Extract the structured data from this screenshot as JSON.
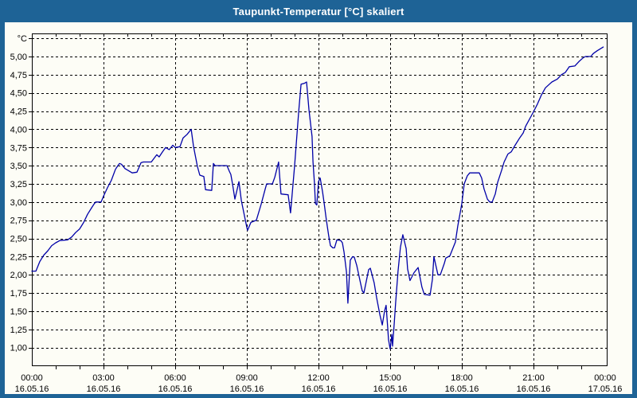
{
  "window": {
    "title": "Taupunkt-Temperatur [°C] skaliert"
  },
  "colors": {
    "titlebar_bg": "#1e6396",
    "titlebar_text": "#ffffff",
    "window_border": "#1e6396",
    "panel_bg": "#fdfdf6",
    "line": "#0000a8",
    "grid": "#000000",
    "frame": "#000000",
    "axis_text": "#000000"
  },
  "chart_data": {
    "type": "line",
    "title": "Taupunkt-Temperatur [°C] skaliert",
    "grid": "dashed",
    "legend_position": "none",
    "y_axis": {
      "unit": "°C",
      "min": 0.75,
      "max": 5.32,
      "tick_step": 0.25,
      "top_gridline_value": 5.25,
      "ticks": [
        {
          "value": 5.0,
          "label": "5,00"
        },
        {
          "value": 4.75,
          "label": "4,75"
        },
        {
          "value": 4.5,
          "label": "4,50"
        },
        {
          "value": 4.25,
          "label": "4,25"
        },
        {
          "value": 4.0,
          "label": "4,00"
        },
        {
          "value": 3.75,
          "label": "3,75"
        },
        {
          "value": 3.5,
          "label": "3,50"
        },
        {
          "value": 3.25,
          "label": "3,25"
        },
        {
          "value": 3.0,
          "label": "3,00"
        },
        {
          "value": 2.75,
          "label": "2,75"
        },
        {
          "value": 2.5,
          "label": "2,50"
        },
        {
          "value": 2.25,
          "label": "2,25"
        },
        {
          "value": 2.0,
          "label": "2,00"
        },
        {
          "value": 1.75,
          "label": "1,75"
        },
        {
          "value": 1.5,
          "label": "1,50"
        },
        {
          "value": 1.25,
          "label": "1,25"
        },
        {
          "value": 1.0,
          "label": "1,00"
        }
      ]
    },
    "x_axis": {
      "minor_tick_hours": 1,
      "major_tick_hours": 3,
      "ticks": [
        {
          "hour": 0,
          "time": "00:00",
          "date": "16.05.16"
        },
        {
          "hour": 3,
          "time": "03:00",
          "date": "16.05.16"
        },
        {
          "hour": 6,
          "time": "06:00",
          "date": "16.05.16"
        },
        {
          "hour": 9,
          "time": "09:00",
          "date": "16.05.16"
        },
        {
          "hour": 12,
          "time": "12:00",
          "date": "16.05.16"
        },
        {
          "hour": 15,
          "time": "15:00",
          "date": "16.05.16"
        },
        {
          "hour": 18,
          "time": "18:00",
          "date": "16.05.16"
        },
        {
          "hour": 21,
          "time": "21:00",
          "date": "16.05.16"
        },
        {
          "hour": 24,
          "time": "00:00",
          "date": "17.05.16"
        }
      ]
    },
    "series": [
      {
        "name": "Taupunkt-Temperatur [°C] skaliert",
        "points_hour_value": [
          [
            0,
            2.05
          ],
          [
            0.17,
            2.05
          ],
          [
            0.33,
            2.18
          ],
          [
            0.5,
            2.27
          ],
          [
            0.67,
            2.33
          ],
          [
            0.83,
            2.4
          ],
          [
            1,
            2.44
          ],
          [
            1.17,
            2.47
          ],
          [
            1.5,
            2.48
          ],
          [
            1.67,
            2.52
          ],
          [
            1.83,
            2.58
          ],
          [
            2,
            2.63
          ],
          [
            2.17,
            2.72
          ],
          [
            2.33,
            2.83
          ],
          [
            2.5,
            2.92
          ],
          [
            2.6,
            2.97
          ],
          [
            2.67,
            3.0
          ],
          [
            2.9,
            3.0
          ],
          [
            3,
            3.08
          ],
          [
            3.17,
            3.2
          ],
          [
            3.33,
            3.3
          ],
          [
            3.5,
            3.45
          ],
          [
            3.6,
            3.5
          ],
          [
            3.67,
            3.53
          ],
          [
            3.75,
            3.52
          ],
          [
            3.9,
            3.46
          ],
          [
            4,
            3.44
          ],
          [
            4.2,
            3.4
          ],
          [
            4.4,
            3.41
          ],
          [
            4.57,
            3.54
          ],
          [
            4.67,
            3.55
          ],
          [
            5,
            3.55
          ],
          [
            5.23,
            3.65
          ],
          [
            5.33,
            3.62
          ],
          [
            5.45,
            3.68
          ],
          [
            5.6,
            3.75
          ],
          [
            5.75,
            3.72
          ],
          [
            5.9,
            3.78
          ],
          [
            6,
            3.75
          ],
          [
            6.2,
            3.76
          ],
          [
            6.33,
            3.88
          ],
          [
            6.5,
            3.93
          ],
          [
            6.67,
            4.0
          ],
          [
            6.77,
            3.76
          ],
          [
            6.93,
            3.49
          ],
          [
            7.03,
            3.37
          ],
          [
            7.2,
            3.35
          ],
          [
            7.27,
            3.17
          ],
          [
            7.53,
            3.16
          ],
          [
            7.6,
            3.53
          ],
          [
            7.67,
            3.5
          ],
          [
            8.17,
            3.5
          ],
          [
            8.27,
            3.42
          ],
          [
            8.33,
            3.38
          ],
          [
            8.4,
            3.25
          ],
          [
            8.5,
            3.04
          ],
          [
            8.67,
            3.28
          ],
          [
            8.77,
            3.02
          ],
          [
            9,
            2.65
          ],
          [
            9.03,
            2.61
          ],
          [
            9.17,
            2.72
          ],
          [
            9.4,
            2.75
          ],
          [
            9.6,
            2.97
          ],
          [
            9.77,
            3.18
          ],
          [
            9.83,
            3.25
          ],
          [
            10.07,
            3.25
          ],
          [
            10.17,
            3.34
          ],
          [
            10.33,
            3.55
          ],
          [
            10.43,
            3.11
          ],
          [
            10.73,
            3.1
          ],
          [
            10.83,
            2.85
          ],
          [
            11,
            3.5
          ],
          [
            11.17,
            4.24
          ],
          [
            11.27,
            4.62
          ],
          [
            11.4,
            4.63
          ],
          [
            11.5,
            4.65
          ],
          [
            11.6,
            4.27
          ],
          [
            11.73,
            3.9
          ],
          [
            11.77,
            3.55
          ],
          [
            11.83,
            3.26
          ],
          [
            11.87,
            2.98
          ],
          [
            11.93,
            2.96
          ],
          [
            12,
            3.28
          ],
          [
            12.07,
            3.33
          ],
          [
            12.17,
            3.14
          ],
          [
            12.23,
            3.0
          ],
          [
            12.33,
            2.75
          ],
          [
            12.43,
            2.53
          ],
          [
            12.5,
            2.4
          ],
          [
            12.6,
            2.37
          ],
          [
            12.67,
            2.37
          ],
          [
            12.77,
            2.48
          ],
          [
            12.93,
            2.47
          ],
          [
            13,
            2.44
          ],
          [
            13.07,
            2.31
          ],
          [
            13.17,
            2.04
          ],
          [
            13.23,
            1.61
          ],
          [
            13.33,
            2.2
          ],
          [
            13.43,
            2.25
          ],
          [
            13.5,
            2.24
          ],
          [
            13.6,
            2.13
          ],
          [
            13.73,
            1.93
          ],
          [
            13.83,
            1.78
          ],
          [
            13.9,
            1.75
          ],
          [
            14,
            1.91
          ],
          [
            14.1,
            2.07
          ],
          [
            14.17,
            2.09
          ],
          [
            14.33,
            1.89
          ],
          [
            14.43,
            1.69
          ],
          [
            14.57,
            1.45
          ],
          [
            14.67,
            1.31
          ],
          [
            14.77,
            1.51
          ],
          [
            14.83,
            1.58
          ],
          [
            14.9,
            1.26
          ],
          [
            14.93,
            1.11
          ],
          [
            15,
            0.98
          ],
          [
            15.07,
            1.18
          ],
          [
            15.1,
            1.02
          ],
          [
            15.17,
            1.33
          ],
          [
            15.23,
            1.62
          ],
          [
            15.33,
            2.05
          ],
          [
            15.43,
            2.38
          ],
          [
            15.53,
            2.55
          ],
          [
            15.67,
            2.36
          ],
          [
            15.73,
            2.08
          ],
          [
            15.83,
            1.92
          ],
          [
            16,
            2.03
          ],
          [
            16.17,
            2.1
          ],
          [
            16.33,
            1.83
          ],
          [
            16.43,
            1.73
          ],
          [
            16.67,
            1.72
          ],
          [
            16.77,
            1.94
          ],
          [
            16.83,
            2.25
          ],
          [
            17,
            2.0
          ],
          [
            17.1,
            2.0
          ],
          [
            17.27,
            2.16
          ],
          [
            17.33,
            2.23
          ],
          [
            17.5,
            2.26
          ],
          [
            17.73,
            2.45
          ],
          [
            17.83,
            2.67
          ],
          [
            17.93,
            2.85
          ],
          [
            18,
            2.98
          ],
          [
            18.1,
            3.25
          ],
          [
            18.23,
            3.36
          ],
          [
            18.33,
            3.4
          ],
          [
            18.73,
            3.4
          ],
          [
            18.83,
            3.33
          ],
          [
            18.93,
            3.18
          ],
          [
            19.07,
            3.04
          ],
          [
            19.17,
            3.0
          ],
          [
            19.27,
            3.0
          ],
          [
            19.4,
            3.11
          ],
          [
            19.5,
            3.27
          ],
          [
            19.67,
            3.44
          ],
          [
            19.77,
            3.55
          ],
          [
            19.93,
            3.66
          ],
          [
            20.07,
            3.69
          ],
          [
            20.23,
            3.78
          ],
          [
            20.4,
            3.87
          ],
          [
            20.57,
            3.95
          ],
          [
            20.67,
            4.04
          ],
          [
            21,
            4.24
          ],
          [
            21.17,
            4.35
          ],
          [
            21.33,
            4.47
          ],
          [
            21.5,
            4.57
          ],
          [
            21.67,
            4.62
          ],
          [
            21.77,
            4.65
          ],
          [
            22,
            4.69
          ],
          [
            22.17,
            4.75
          ],
          [
            22.33,
            4.78
          ],
          [
            22.5,
            4.86
          ],
          [
            22.73,
            4.87
          ],
          [
            22.9,
            4.93
          ],
          [
            23.07,
            4.98
          ],
          [
            23.17,
            5.0
          ],
          [
            23.4,
            5.0
          ],
          [
            23.5,
            5.04
          ],
          [
            23.67,
            5.08
          ],
          [
            23.92,
            5.13
          ]
        ]
      }
    ]
  }
}
